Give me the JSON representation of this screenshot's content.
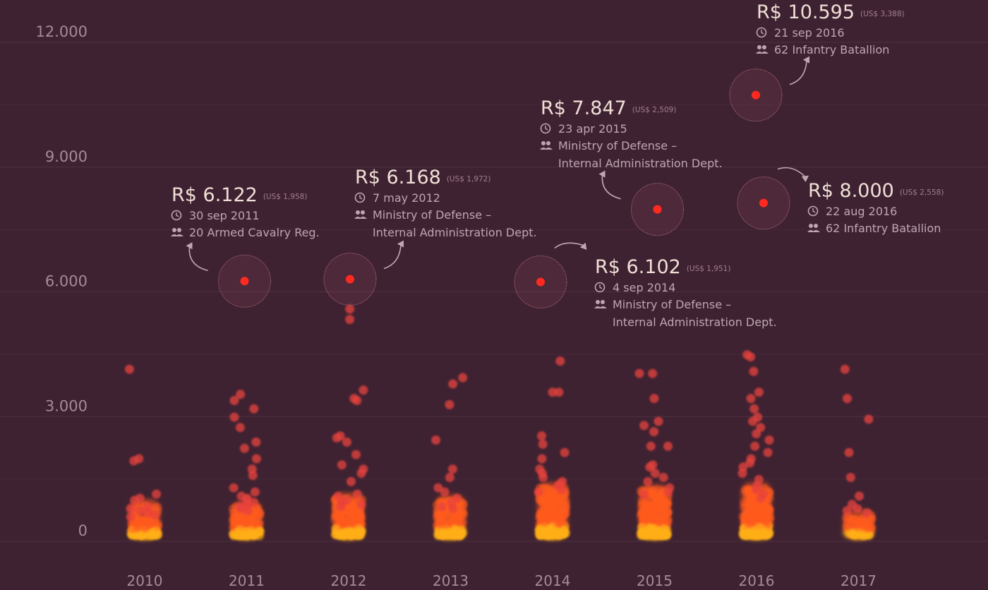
{
  "chart_data": {
    "type": "scatter",
    "y_ticks": [
      "12.000",
      "9.000",
      "6.000",
      "3.000",
      "0"
    ],
    "y_tick_values": [
      12000,
      9000,
      6000,
      3000,
      0
    ],
    "ylim": [
      0,
      12000
    ],
    "categories": [
      "2010",
      "2011",
      "2012",
      "2013",
      "2014",
      "2015",
      "2016",
      "2017"
    ],
    "grid": true,
    "colors": {
      "background": "#3f2232",
      "point": "#e8433c",
      "point_dense": "#ff5a1f",
      "point_core": "#ffae1a",
      "highlight": "#ff2a1f"
    },
    "highlights": [
      {
        "year": "2011",
        "value": 6122,
        "amount": "R$ 6.122",
        "usd": "(US$ 1,958)",
        "date": "30 sep 2011",
        "unit_lines": [
          "20 Armed Cavalry Reg."
        ]
      },
      {
        "year": "2012",
        "value": 6168,
        "amount": "R$ 6.168",
        "usd": "(US$ 1,972)",
        "date": "7 may 2012",
        "unit_lines": [
          "Ministry of Defense –",
          "Internal Administration Dept."
        ]
      },
      {
        "year": "2014",
        "value": 6102,
        "amount": "R$ 6.102",
        "usd": "(US$ 1,951)",
        "date": "4 sep 2014",
        "unit_lines": [
          "Ministry of Defense –",
          "Internal Administration Dept."
        ]
      },
      {
        "year": "2015",
        "value": 7847,
        "amount": "R$ 7.847",
        "usd": "(US$ 2,509)",
        "date": "23 apr 2015",
        "unit_lines": [
          "Ministry of Defense –",
          "Internal Administration Dept."
        ]
      },
      {
        "year": "2016",
        "value": 10595,
        "amount": "R$ 10.595",
        "usd": "(US$ 3,388)",
        "date": "21 sep 2016",
        "unit_lines": [
          "62 Infantry Batallion"
        ]
      },
      {
        "year": "2016",
        "value": 8000,
        "amount": "R$ 8.000",
        "usd": "(US$ 2,558)",
        "date": "22 aug 2016",
        "unit_lines": [
          "62 Infantry Batallion"
        ]
      }
    ],
    "points": {
      "2010": [
        4000,
        1850,
        1800,
        1000,
        900,
        850,
        700,
        650,
        600,
        550,
        500,
        450
      ],
      "2011": [
        3400,
        3250,
        3050,
        2850,
        2600,
        2250,
        2100,
        1850,
        1600,
        1450,
        1150,
        1050,
        950,
        900,
        850,
        800,
        750,
        700,
        650,
        600
      ],
      "2012": [
        5200,
        5450,
        3500,
        3300,
        3250,
        2400,
        2350,
        2250,
        1950,
        1700,
        1600,
        1500,
        1300,
        1000,
        950,
        850,
        800,
        750,
        700
      ],
      "2013": [
        3800,
        3650,
        3150,
        2300,
        1600,
        1400,
        1150,
        1050,
        900,
        800,
        700,
        650
      ],
      "2014": [
        4200,
        3450,
        3450,
        2400,
        2200,
        2000,
        1850,
        1600,
        1500,
        1400,
        1300,
        1250,
        1200,
        1100,
        1050
      ],
      "2015": [
        3900,
        3900,
        3300,
        2750,
        2650,
        2500,
        2150,
        2150,
        1700,
        1650,
        1500,
        1400,
        1300,
        1150,
        1050,
        1000
      ],
      "2016": [
        4350,
        4300,
        3950,
        3450,
        3300,
        3050,
        2850,
        2750,
        2600,
        2450,
        2300,
        2150,
        2000,
        1850,
        1750,
        1650,
        1500,
        1350,
        1200,
        1100,
        1000,
        900
      ],
      "2017": [
        4000,
        3300,
        2800,
        2000,
        1400,
        950,
        750,
        650,
        600,
        550
      ]
    },
    "dense_base": {
      "2010": {
        "top": 750,
        "count": 120
      },
      "2011": {
        "top": 700,
        "count": 150
      },
      "2012": {
        "top": 900,
        "count": 170
      },
      "2013": {
        "top": 850,
        "count": 150
      },
      "2014": {
        "top": 1150,
        "count": 230
      },
      "2015": {
        "top": 1100,
        "count": 220
      },
      "2016": {
        "top": 1150,
        "count": 230
      },
      "2017": {
        "top": 500,
        "count": 60
      }
    }
  }
}
